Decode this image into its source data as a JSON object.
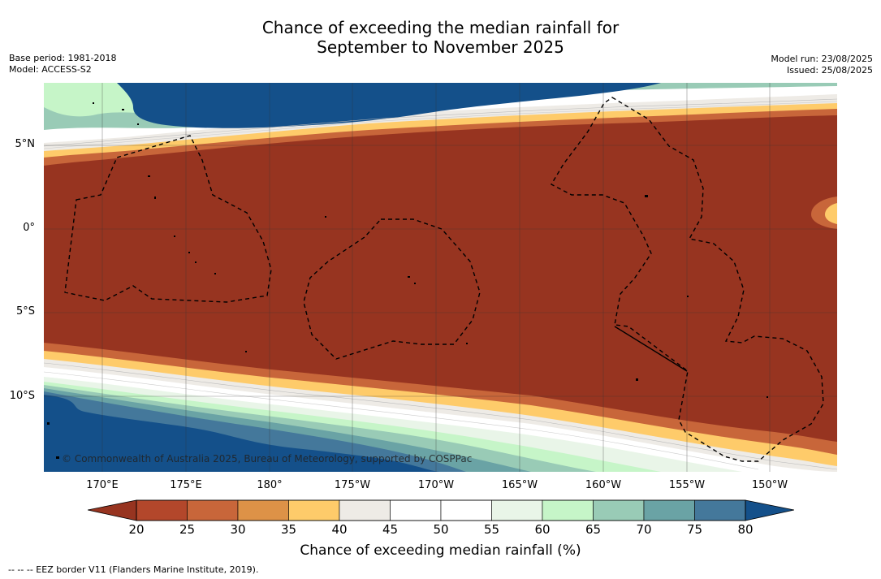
{
  "title": {
    "line1": "Chance of exceeding the median rainfall for",
    "line2": "September to November 2025"
  },
  "meta": {
    "base_period": "Base period: 1981-2018",
    "model": "Model: ACCESS-S2",
    "model_run": "Model run: 23/08/2025",
    "issued": "Issued: 25/08/2025"
  },
  "map": {
    "lat_labels": [
      "5°N",
      "0°",
      "5°S",
      "10°S"
    ],
    "lon_labels": [
      "170°E",
      "175°E",
      "180°",
      "175°W",
      "170°W",
      "165°W",
      "160°W",
      "155°W",
      "150°W"
    ],
    "copyright": "© Commonwealth of Australia 2025, Bureau of Meteorology, supported by COSPPac",
    "colors": {
      "very_dry": "#973420",
      "dry": "#b3472b",
      "orange": "#c8663a",
      "light_orange": "#dd9247",
      "yellow": "#fecb6a",
      "grey": "#eeebe6",
      "white": "#ffffff",
      "pale_green": "#e9f5e8",
      "light_green": "#c6f5c8",
      "teal_light": "#99cbb6",
      "teal": "#6aa3a5",
      "steel_blue": "#44789b",
      "dark_blue": "#14508a"
    }
  },
  "colorbar": {
    "ticks": [
      "20",
      "25",
      "30",
      "35",
      "40",
      "45",
      "50",
      "55",
      "60",
      "65",
      "70",
      "75",
      "80"
    ],
    "label": "Chance of exceeding median rainfall (%)",
    "colors": [
      "#973420",
      "#b3472b",
      "#c8663a",
      "#dd9247",
      "#fecb6a",
      "#eeebe6",
      "#ffffff",
      "#ffffff",
      "#e9f5e8",
      "#c6f5c8",
      "#99cbb6",
      "#6aa3a5",
      "#44789b",
      "#14508a"
    ]
  },
  "footnote": "-- -- -- EEZ border V11 (Flanders Marine Institute, 2019)."
}
